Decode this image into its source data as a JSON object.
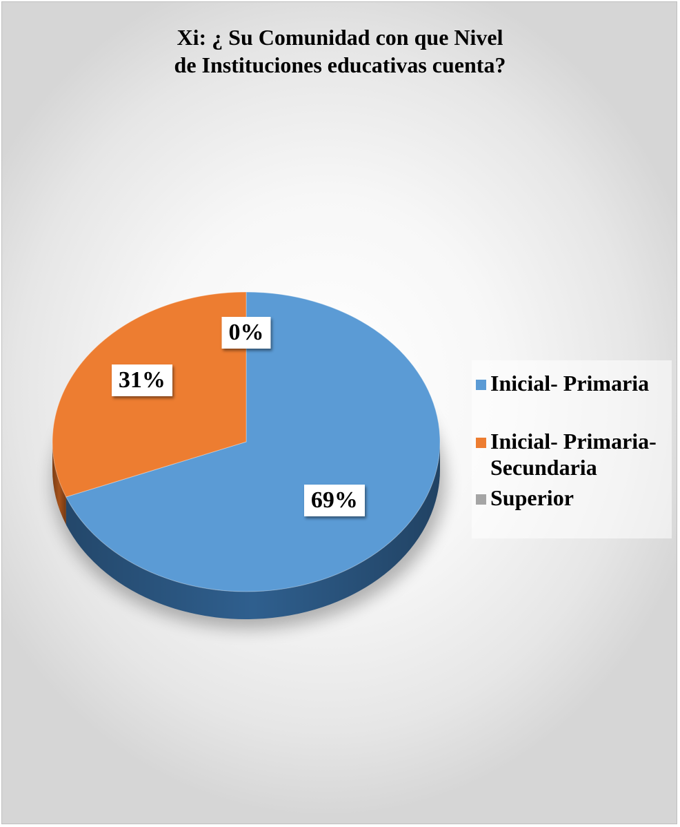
{
  "chart_data": {
    "type": "pie",
    "title_lines": [
      "Xi: ¿ Su Comunidad con que Nivel",
      "de Instituciones educativas cuenta?"
    ],
    "categories": [
      "Inicial- Primaria",
      "Inicial- Primaria- Secundaria",
      "Superior"
    ],
    "legend_lines": [
      [
        "Inicial- Primaria"
      ],
      [
        "Inicial- Primaria-",
        "Secundaria"
      ],
      [
        "Superior"
      ]
    ],
    "values": [
      69,
      31,
      0
    ],
    "data_labels": [
      "69%",
      "31%",
      "0%"
    ],
    "colors": [
      "#5b9bd5",
      "#ed7d31",
      "#a5a5a5"
    ],
    "side_colors": [
      "#2f5f8e",
      "#a5521b",
      "#6e6e6e"
    ],
    "legend_position": "right",
    "style": "3d"
  }
}
